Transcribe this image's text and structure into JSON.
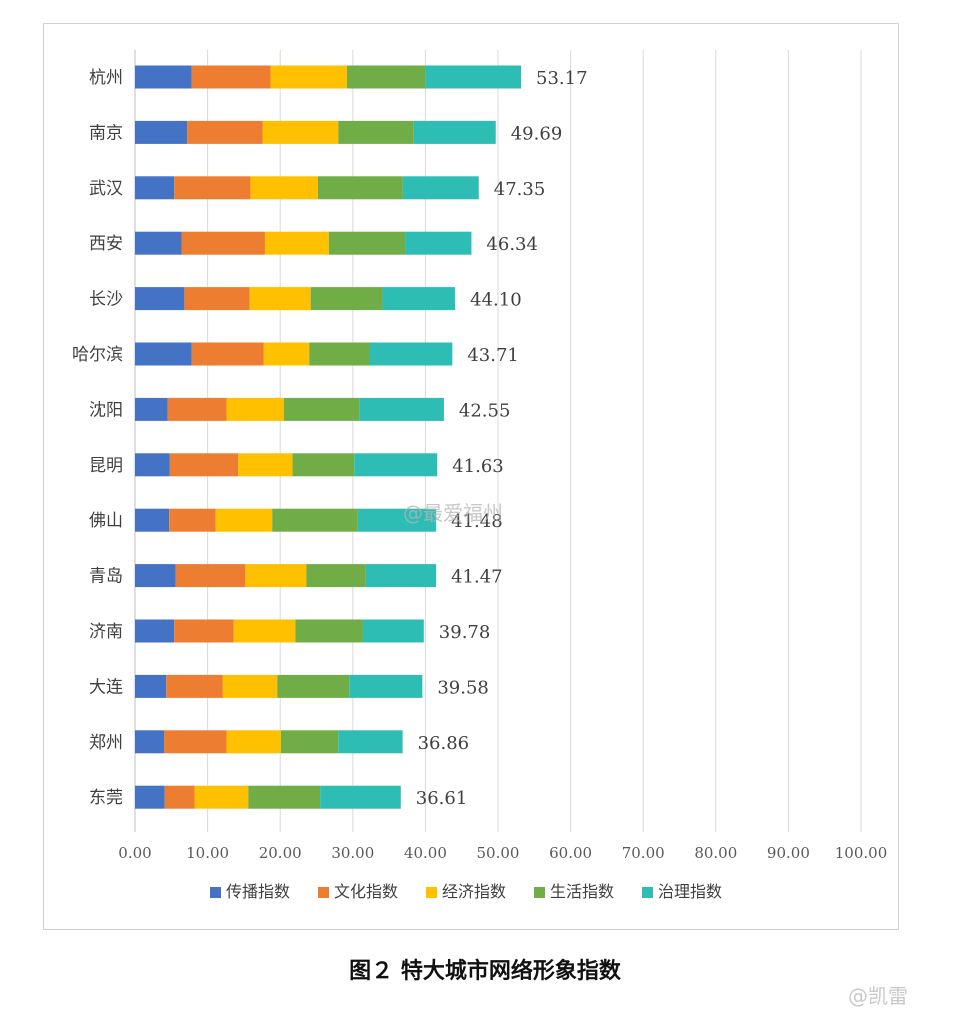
{
  "caption": "图２ 特大城市网络形象指数",
  "watermarks": {
    "center": "@最爱福州",
    "corner": "@凯雷"
  },
  "chart_data": {
    "type": "bar",
    "orientation": "horizontal",
    "stacked": true,
    "title": "",
    "categories": [
      "杭州",
      "南京",
      "武汉",
      "西安",
      "长沙",
      "哈尔滨",
      "沈阳",
      "昆明",
      "佛山",
      "青岛",
      "济南",
      "大连",
      "郑州",
      "东莞"
    ],
    "series": [
      {
        "name": "传播指数",
        "color": "#4472C4",
        "values": [
          7.8,
          7.2,
          5.4,
          6.4,
          6.8,
          7.8,
          4.5,
          4.8,
          4.7,
          5.6,
          5.4,
          4.3,
          4.0,
          4.1
        ]
      },
      {
        "name": "文化指数",
        "color": "#ED7D31",
        "values": [
          10.9,
          10.4,
          10.5,
          11.5,
          9.0,
          9.9,
          8.1,
          9.4,
          6.4,
          9.6,
          8.2,
          7.8,
          8.6,
          4.1
        ]
      },
      {
        "name": "经济指数",
        "color": "#FFC000",
        "values": [
          10.5,
          10.4,
          9.3,
          8.8,
          8.4,
          6.3,
          7.9,
          7.5,
          7.8,
          8.4,
          8.5,
          7.5,
          7.5,
          7.4
        ]
      },
      {
        "name": "生活指数",
        "color": "#70AD47",
        "values": [
          10.8,
          10.4,
          11.7,
          10.5,
          9.9,
          8.3,
          10.4,
          8.5,
          11.8,
          8.2,
          9.3,
          9.9,
          7.9,
          9.9
        ]
      },
      {
        "name": "治理指数",
        "color": "#2EBDB5",
        "values": [
          13.17,
          11.29,
          10.45,
          9.14,
          10.0,
          11.41,
          11.65,
          11.43,
          10.78,
          9.67,
          8.38,
          10.08,
          8.86,
          11.11
        ]
      }
    ],
    "totals": [
      "53.17",
      "49.69",
      "47.35",
      "46.34",
      "44.10",
      "43.71",
      "42.55",
      "41.63",
      "41.48",
      "41.47",
      "39.78",
      "39.58",
      "36.86",
      "36.61"
    ],
    "x_ticks": [
      "0.00",
      "10.00",
      "20.00",
      "30.00",
      "40.00",
      "50.00",
      "60.00",
      "70.00",
      "80.00",
      "90.00",
      "100.00"
    ],
    "xlim": [
      0,
      100
    ],
    "grid": "vertical",
    "legend_position": "bottom"
  }
}
